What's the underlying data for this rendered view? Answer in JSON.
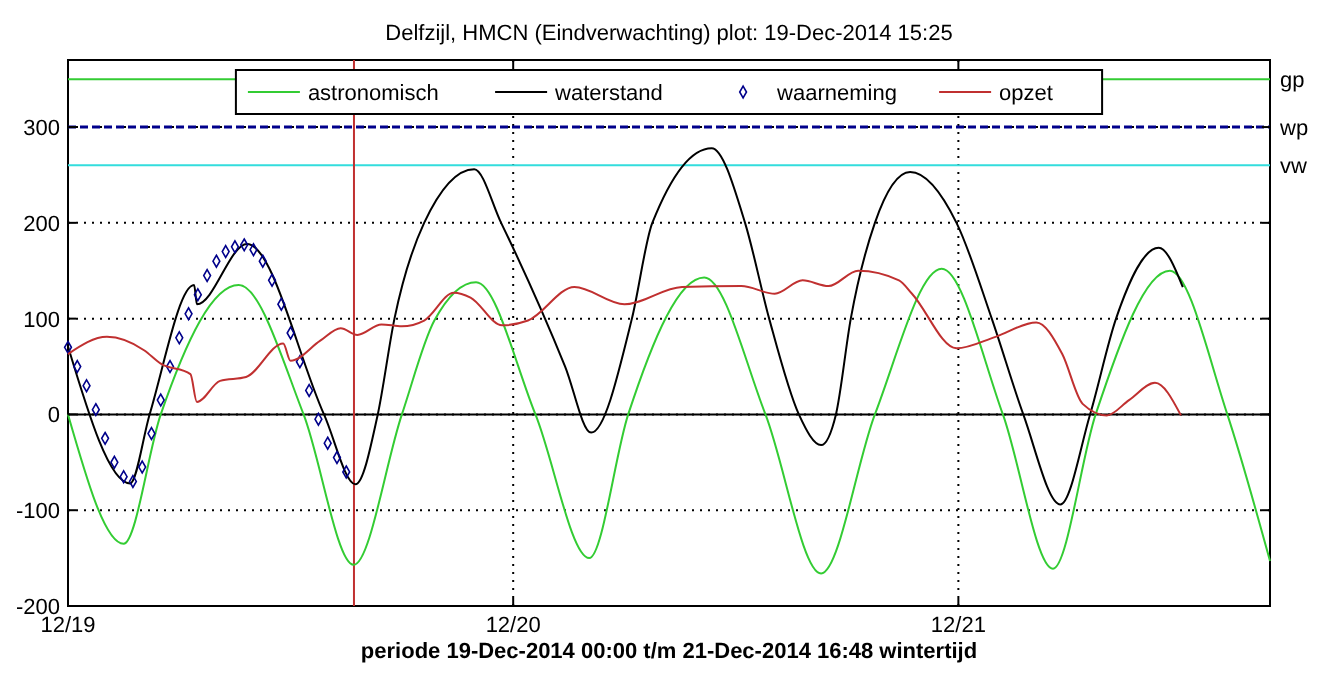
{
  "chart_data": {
    "type": "line",
    "title": "Delfzijl, HMCN (Eindverwachting) plot: 19-Dec-2014 15:25",
    "xlabel": "periode 19-Dec-2014 00:00 t/m 21-Dec-2014 16:48 wintertijd",
    "xlim": [
      "2014-12-19T00:00",
      "2014-12-21T16:48"
    ],
    "xticks": [
      {
        "value": "2014-12-19",
        "label": "12/19"
      },
      {
        "value": "2014-12-20",
        "label": "12/20"
      },
      {
        "value": "2014-12-21",
        "label": "12/21"
      }
    ],
    "ylim": [
      -200,
      370
    ],
    "yticks": [
      -200,
      -100,
      0,
      100,
      200,
      300
    ],
    "grid": true,
    "legend": "top",
    "series": [
      {
        "name": "astronomisch",
        "color": "#33cc33",
        "x": [
          "2014-12-19T00:00",
          "2014-12-19T03:00",
          "2014-12-19T05:00",
          "2014-12-19T09:12",
          "2014-12-19T12:42",
          "2014-12-19T15:24",
          "2014-12-19T18:00",
          "2014-12-19T19:45",
          "2014-12-19T22:00",
          "2014-12-20T01:12",
          "2014-12-20T04:06",
          "2014-12-20T06:12",
          "2014-12-20T10:18",
          "2014-12-20T13:36",
          "2014-12-20T16:36",
          "2014-12-20T19:30",
          "2014-12-20T23:06",
          "2014-12-21T02:24",
          "2014-12-21T05:06",
          "2014-12-21T07:24",
          "2014-12-21T11:24",
          "2014-12-21T14:30",
          "2014-12-21T16:48"
        ],
        "values": [
          0,
          -135,
          0,
          135,
          0,
          -157,
          0,
          98,
          138,
          0,
          -150,
          0,
          143,
          0,
          -166,
          0,
          152,
          0,
          -161,
          0,
          150,
          0,
          -153
        ]
      },
      {
        "name": "waterstand",
        "color": "#000000",
        "x": [
          "2014-12-19T00:00",
          "2014-12-19T03:21",
          "2014-12-19T04:24",
          "2014-12-19T06:48",
          "2014-12-19T06:57",
          "2014-12-19T09:39",
          "2014-12-19T13:48",
          "2014-12-19T15:30",
          "2014-12-19T16:42",
          "2014-12-19T17:36",
          "2014-12-19T19:12",
          "2014-12-19T21:54",
          "2014-12-19T23:21",
          "2014-12-20T02:48",
          "2014-12-20T04:12",
          "2014-12-20T06:24",
          "2014-12-20T07:30",
          "2014-12-20T10:42",
          "2014-12-20T12:30",
          "2014-12-20T13:48",
          "2014-12-20T15:24",
          "2014-12-20T16:36",
          "2014-12-20T17:24",
          "2014-12-20T18:12",
          "2014-12-20T19:30",
          "2014-12-20T21:24",
          "2014-12-20T23:54",
          "2014-12-21T01:48",
          "2014-12-21T03:30",
          "2014-12-21T05:30",
          "2014-12-21T07:06",
          "2014-12-21T08:30",
          "2014-12-21T10:48",
          "2014-12-21T12:06"
        ],
        "values": [
          71,
          -72,
          0,
          135,
          115,
          178,
          0,
          -73,
          0,
          100,
          200,
          256,
          200,
          50,
          -19,
          100,
          200,
          278,
          200,
          100,
          0,
          -32,
          0,
          100,
          200,
          253,
          200,
          100,
          0,
          -94,
          0,
          100,
          174,
          133
        ]
      },
      {
        "name": "waarneming",
        "type": "scatter",
        "marker": "diamond",
        "color": "#00008b",
        "x": [
          "2014-12-19T00:00",
          "2014-12-19T00:30",
          "2014-12-19T01:00",
          "2014-12-19T01:30",
          "2014-12-19T02:00",
          "2014-12-19T02:30",
          "2014-12-19T03:00",
          "2014-12-19T03:30",
          "2014-12-19T04:00",
          "2014-12-19T04:30",
          "2014-12-19T05:00",
          "2014-12-19T05:30",
          "2014-12-19T06:00",
          "2014-12-19T06:30",
          "2014-12-19T07:00",
          "2014-12-19T07:30",
          "2014-12-19T08:00",
          "2014-12-19T08:30",
          "2014-12-19T09:00",
          "2014-12-19T09:30",
          "2014-12-19T10:00",
          "2014-12-19T10:30",
          "2014-12-19T11:00",
          "2014-12-19T11:30",
          "2014-12-19T12:00",
          "2014-12-19T12:30",
          "2014-12-19T13:00",
          "2014-12-19T13:30",
          "2014-12-19T14:00",
          "2014-12-19T14:30",
          "2014-12-19T15:00"
        ],
        "values": [
          70,
          50,
          30,
          5,
          -25,
          -50,
          -65,
          -70,
          -55,
          -20,
          15,
          50,
          80,
          105,
          125,
          145,
          160,
          170,
          175,
          177,
          172,
          160,
          140,
          115,
          85,
          55,
          25,
          -5,
          -30,
          -45,
          -60
        ]
      },
      {
        "name": "opzet",
        "color": "#c03030",
        "x": [
          "2014-12-19T00:00",
          "2014-12-19T02:06",
          "2014-12-19T04:06",
          "2014-12-19T05:00",
          "2014-12-19T06:36",
          "2014-12-19T06:57",
          "2014-12-19T08:12",
          "2014-12-19T09:36",
          "2014-12-19T11:36",
          "2014-12-19T12:00",
          "2014-12-19T13:36",
          "2014-12-19T14:42",
          "2014-12-19T15:36",
          "2014-12-19T16:54",
          "2014-12-19T18:00",
          "2014-12-19T19:12",
          "2014-12-19T20:48",
          "2014-12-19T21:42",
          "2014-12-19T23:24",
          "2014-12-20T00:48",
          "2014-12-20T03:18",
          "2014-12-20T06:00",
          "2014-12-20T09:06",
          "2014-12-20T12:18",
          "2014-12-20T14:06",
          "2014-12-20T15:36",
          "2014-12-20T17:00",
          "2014-12-20T18:36",
          "2014-12-20T20:48",
          "2014-12-20T21:30",
          "2014-12-20T23:54",
          "2014-12-21T02:00",
          "2014-12-21T04:12",
          "2014-12-21T05:36",
          "2014-12-21T06:42",
          "2014-12-21T08:00",
          "2014-12-21T09:12",
          "2014-12-21T10:36",
          "2014-12-21T12:00"
        ],
        "values": [
          63,
          81,
          67,
          53,
          42,
          13,
          35,
          39,
          74,
          56,
          77,
          90,
          83,
          94,
          92,
          98,
          127,
          122,
          93,
          98,
          133,
          115,
          133,
          134,
          126,
          140,
          134,
          150,
          140,
          126,
          69,
          81,
          96,
          63,
          11,
          -1,
          15,
          33,
          -1
        ]
      }
    ],
    "ref_lines": [
      {
        "axis": "y",
        "value": 350,
        "label": "gp",
        "color": "#33cc33"
      },
      {
        "axis": "y",
        "value": 300,
        "label": "wp",
        "color": "#00008b",
        "line_style": "dashed"
      },
      {
        "axis": "y",
        "value": 260,
        "label": "vw",
        "color": "#33dddd"
      },
      {
        "axis": "y",
        "value": 0,
        "color": "#000000"
      },
      {
        "axis": "x",
        "value": "2014-12-19T15:25",
        "color": "#c03030"
      }
    ]
  }
}
